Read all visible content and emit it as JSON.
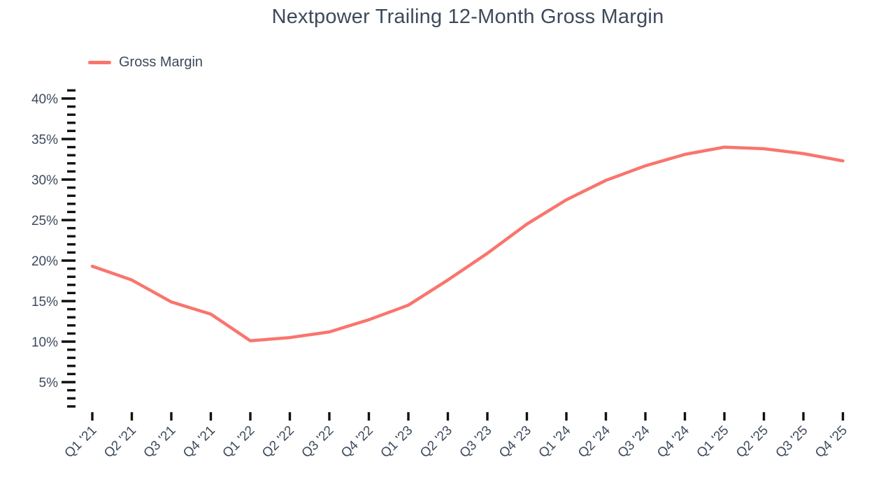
{
  "chart_data": {
    "type": "line",
    "title": "Nextpower Trailing 12-Month Gross Margin",
    "legend_position": "top-left",
    "grid": false,
    "categories": [
      "Q1 '21",
      "Q2 '21",
      "Q3 '21",
      "Q4 '21",
      "Q1 '22",
      "Q2 '22",
      "Q3 '22",
      "Q4 '22",
      "Q1 '23",
      "Q2 '23",
      "Q3 '23",
      "Q4 '23",
      "Q1 '24",
      "Q2 '24",
      "Q3 '24",
      "Q4 '24",
      "Q1 '25",
      "Q2 '25",
      "Q3 '25",
      "Q4 '25"
    ],
    "series": [
      {
        "name": "Gross Margin",
        "color": "#F9756D",
        "values": [
          19.3,
          17.6,
          14.9,
          13.4,
          10.1,
          10.5,
          11.2,
          12.7,
          14.5,
          17.6,
          20.9,
          24.5,
          27.5,
          29.9,
          31.7,
          33.1,
          34.0,
          33.8,
          33.2,
          32.3
        ]
      }
    ],
    "y_axis": {
      "unit": "%",
      "major_tick_values": [
        40,
        35,
        30,
        25,
        20,
        15,
        10,
        5
      ],
      "major_tick_labels": [
        "40%",
        "35%",
        "30%",
        "25%",
        "20%",
        "15%",
        "10%",
        "5%"
      ],
      "minor_ticks": {
        "min": 2,
        "max": 41,
        "step": 1
      },
      "ylim": [
        0,
        42
      ]
    },
    "colors": {
      "line": "#F9756D",
      "text": "#3D4A5C",
      "tick": "#111111"
    }
  }
}
